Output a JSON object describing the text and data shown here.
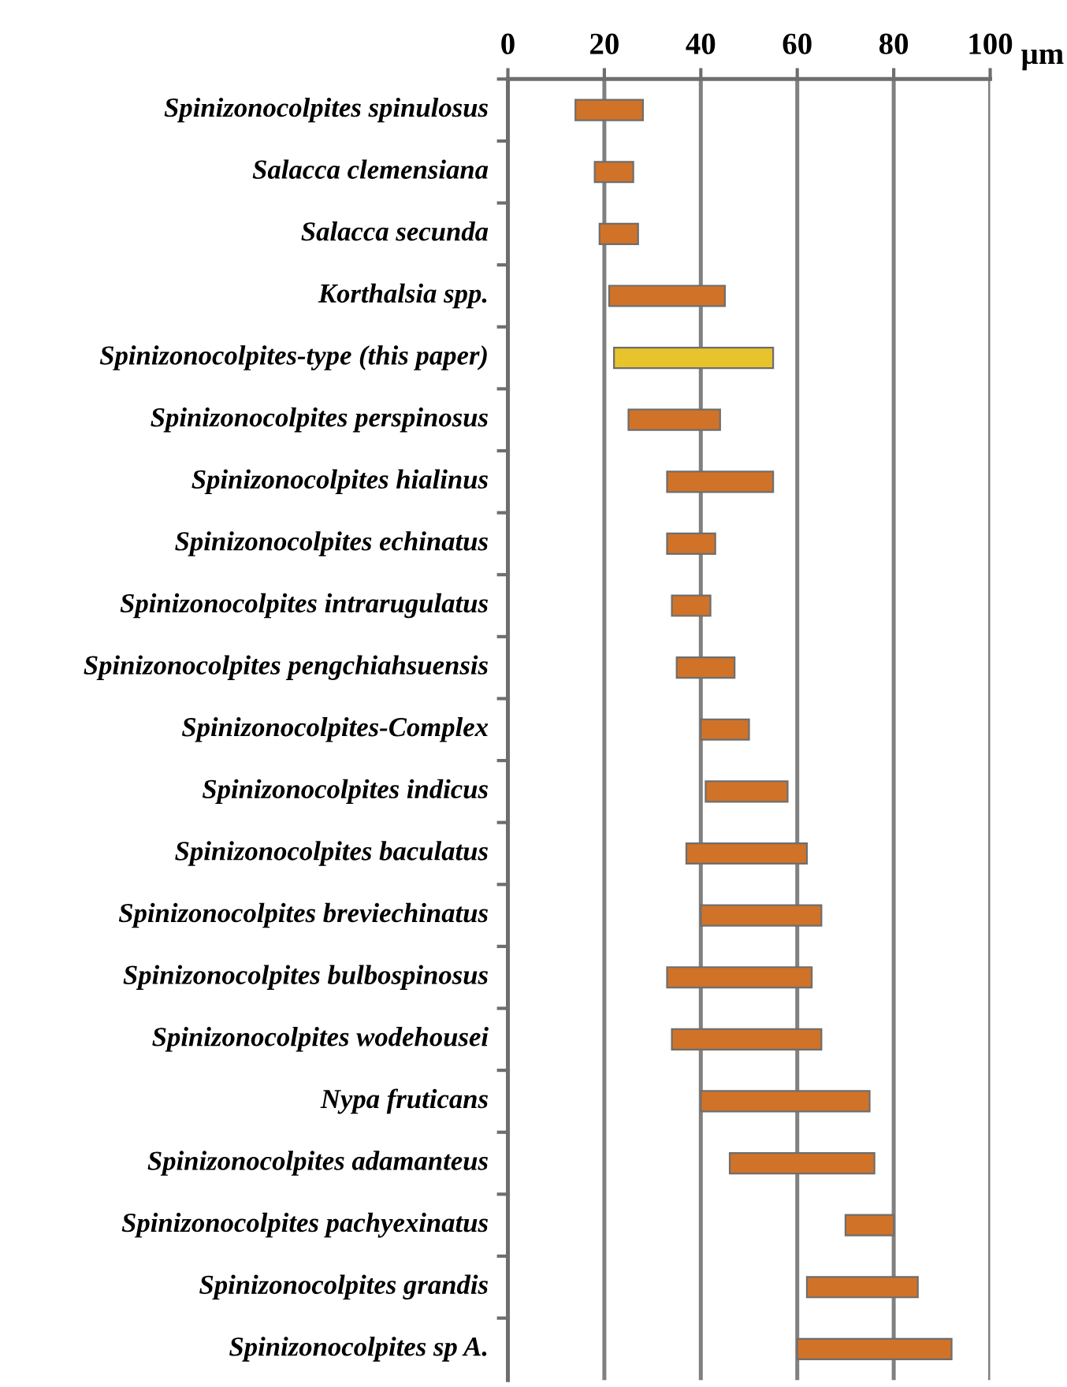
{
  "chart_data": {
    "type": "bar",
    "orientation": "horizontal",
    "xlabel": "µm",
    "categories": [
      "Spinizonocolpites spinulosus",
      "Salacca clemensiana",
      "Salacca secunda",
      "Korthalsia spp.",
      "Spinizonocolpites-type (this paper)",
      "Spinizonocolpites perspinosus",
      "Spinizonocolpites hialinus",
      "Spinizonocolpites echinatus",
      "Spinizonocolpites intrarugulatus",
      "Spinizonocolpites pengchiahsuensis",
      "Spinizonocolpites-Complex",
      "Spinizonocolpites indicus",
      "Spinizonocolpites baculatus",
      "Spinizonocolpites breviechinatus",
      "Spinizonocolpites bulbospinosus",
      "Spinizonocolpites wodehousei",
      "Nypa fruticans",
      "Spinizonocolpites adamanteus",
      "Spinizonocolpites pachyexinatus",
      "Spinizonocolpites grandis",
      "Spinizonocolpites sp A."
    ],
    "base": [
      14,
      18,
      19,
      21,
      22,
      25,
      33,
      33,
      34,
      35,
      40,
      41,
      37,
      40,
      33,
      34,
      40,
      46,
      70,
      62,
      60
    ],
    "values": [
      14,
      8,
      8,
      24,
      33,
      19,
      22,
      10,
      8,
      12,
      10,
      17,
      25,
      25,
      30,
      31,
      35,
      30,
      10,
      23,
      32
    ],
    "colors": [
      "#d07328",
      "#d07328",
      "#d07328",
      "#d07328",
      "#e8c42c",
      "#d07328",
      "#d07328",
      "#d07328",
      "#d07328",
      "#d07328",
      "#d07328",
      "#d07328",
      "#d07328",
      "#d07328",
      "#d07328",
      "#d07328",
      "#d07328",
      "#d07328",
      "#d07328",
      "#d07328",
      "#d07328"
    ],
    "xlim": [
      0,
      100
    ],
    "xticks": [
      0,
      20,
      40,
      60,
      80,
      100
    ],
    "grid": "x"
  }
}
